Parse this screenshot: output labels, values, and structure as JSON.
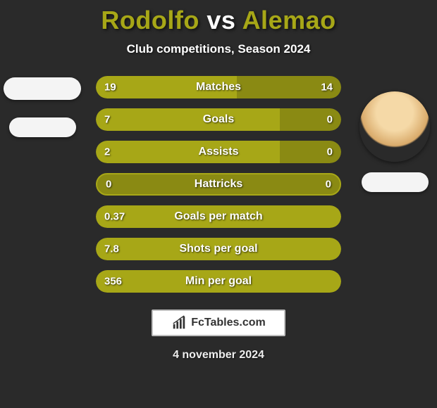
{
  "background_color": "#2a2a2a",
  "title": {
    "player1": "Rodolfo",
    "vs": "vs",
    "player2": "Alemao",
    "colors": {
      "player1": "#a7a717",
      "vs": "#ffffff",
      "player2": "#a7a717"
    },
    "fontsize": 36
  },
  "subtitle": {
    "text": "Club competitions, Season 2024",
    "fontsize": 17,
    "color": "#ffffff"
  },
  "bar_style": {
    "height": 32,
    "gap": 14,
    "radius": 16,
    "full_color": "#a7a717",
    "left_segment_color": "#8a8a13",
    "right_segment_color": "#8a8a13",
    "track_color": "#2a2a2a",
    "label_fontsize": 16,
    "value_fontsize": 15,
    "text_color": "#ffffff"
  },
  "bars": [
    {
      "label": "Matches",
      "left": "19",
      "right": "14",
      "left_pct": 57.6,
      "right_pct": 42.4,
      "mode": "split"
    },
    {
      "label": "Goals",
      "left": "7",
      "right": "0",
      "left_pct": 75,
      "right_pct": 0,
      "mode": "left-on-track"
    },
    {
      "label": "Assists",
      "left": "2",
      "right": "0",
      "left_pct": 75,
      "right_pct": 0,
      "mode": "left-on-track"
    },
    {
      "label": "Hattricks",
      "left": "0",
      "right": "0",
      "left_pct": 100,
      "right_pct": 0,
      "mode": "outline"
    },
    {
      "label": "Goals per match",
      "left": "0.37",
      "right": "",
      "left_pct": 100,
      "right_pct": 0,
      "mode": "full"
    },
    {
      "label": "Shots per goal",
      "left": "7.8",
      "right": "",
      "left_pct": 100,
      "right_pct": 0,
      "mode": "full"
    },
    {
      "label": "Min per goal",
      "left": "356",
      "right": "",
      "left_pct": 100,
      "right_pct": 0,
      "mode": "full"
    }
  ],
  "watermark": {
    "text": "FcTables.com",
    "border_color": "#bfbfbf",
    "bg": "#ffffff",
    "text_color": "#333333"
  },
  "date": {
    "text": "4 november 2024",
    "color": "#eeeeee",
    "fontsize": 16
  }
}
